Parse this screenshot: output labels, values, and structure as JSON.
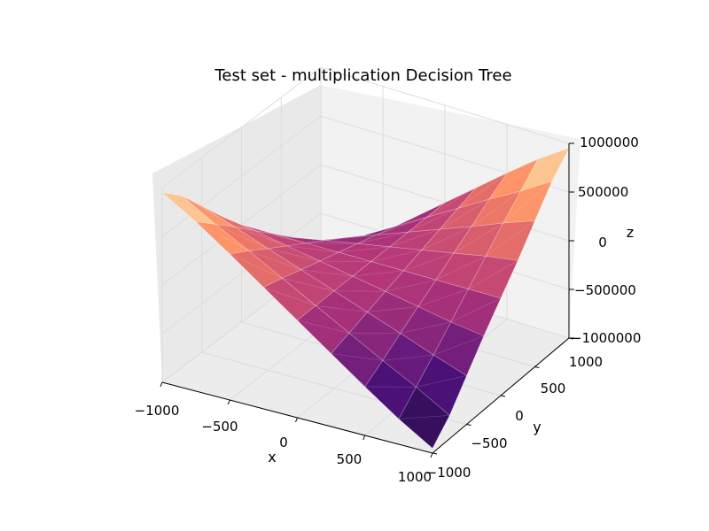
{
  "chart_data": {
    "type": "surface3d",
    "title": "Test set - multiplication Decision Tree",
    "xlabel": "x",
    "ylabel": "y",
    "zlabel": "z",
    "xlim": [
      -1000,
      1000
    ],
    "ylim": [
      -1000,
      1000
    ],
    "zlim": [
      -1000000,
      1000000
    ],
    "x_ticks": [
      "−1000",
      "−500",
      "0",
      "500",
      "1000"
    ],
    "y_ticks": [
      "−1000",
      "−500",
      "0",
      "500",
      "1000"
    ],
    "z_ticks": [
      "−1000000",
      "−500000",
      "0",
      "500000",
      "1000000"
    ],
    "grid": true,
    "colormap": "magma",
    "surface_function": "z = x * y (decision tree prediction)",
    "grid_x": [
      -1000,
      -750,
      -500,
      -250,
      0,
      250,
      500,
      750,
      1000
    ],
    "grid_y": [
      -1000,
      -750,
      -500,
      -250,
      0,
      250,
      500,
      750,
      1000
    ],
    "z_values": [
      [
        950000,
        760000,
        500000,
        240000,
        0,
        -240000,
        -500000,
        -760000,
        -950000
      ],
      [
        740000,
        560000,
        380000,
        190000,
        0,
        -190000,
        -380000,
        -560000,
        -740000
      ],
      [
        500000,
        380000,
        250000,
        125000,
        0,
        -125000,
        -250000,
        -380000,
        -500000
      ],
      [
        250000,
        190000,
        125000,
        62000,
        0,
        -62000,
        -125000,
        -190000,
        -250000
      ],
      [
        0,
        0,
        0,
        0,
        0,
        0,
        0,
        0,
        0
      ],
      [
        -250000,
        -190000,
        -125000,
        -62000,
        0,
        62000,
        125000,
        190000,
        250000
      ],
      [
        -500000,
        -380000,
        -250000,
        -125000,
        0,
        125000,
        250000,
        380000,
        500000
      ],
      [
        -740000,
        -560000,
        -380000,
        -190000,
        0,
        190000,
        380000,
        560000,
        740000
      ],
      [
        -950000,
        -760000,
        -500000,
        -240000,
        0,
        240000,
        500000,
        760000,
        950000
      ]
    ],
    "colors": {
      "low": "#1b0c41",
      "mid": "#b73779",
      "high": "#fcfdbf",
      "pane": "#f2f2f2",
      "pane_side": "#e6e6e6",
      "grid": "#dcdcdc"
    }
  }
}
